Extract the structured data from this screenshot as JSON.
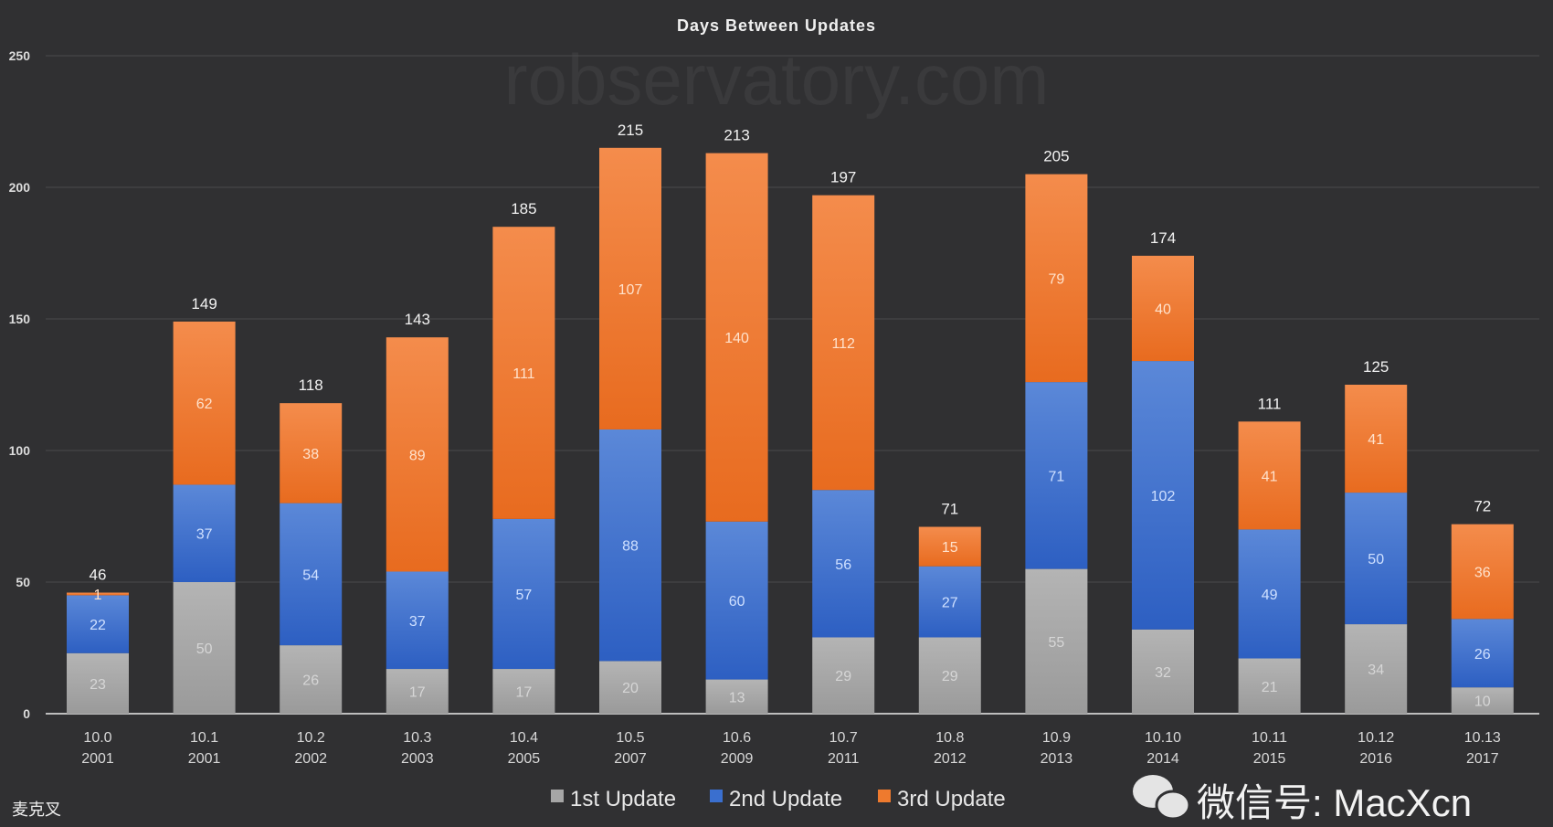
{
  "chart_data": {
    "type": "bar",
    "stacked": true,
    "title": "Days Between Updates",
    "xlabel": "",
    "ylabel": "",
    "ylim": [
      0,
      250
    ],
    "yticks": [
      0,
      50,
      100,
      150,
      200,
      250
    ],
    "grid": true,
    "legend_position": "bottom",
    "categories": [
      {
        "version": "10.0",
        "year": "2001"
      },
      {
        "version": "10.1",
        "year": "2001"
      },
      {
        "version": "10.2",
        "year": "2002"
      },
      {
        "version": "10.3",
        "year": "2003"
      },
      {
        "version": "10.4",
        "year": "2005"
      },
      {
        "version": "10.5",
        "year": "2007"
      },
      {
        "version": "10.6",
        "year": "2009"
      },
      {
        "version": "10.7",
        "year": "2011"
      },
      {
        "version": "10.8",
        "year": "2012"
      },
      {
        "version": "10.9",
        "year": "2013"
      },
      {
        "version": "10.10",
        "year": "2014"
      },
      {
        "version": "10.11",
        "year": "2015"
      },
      {
        "version": "10.12",
        "year": "2016"
      },
      {
        "version": "10.13",
        "year": "2017"
      }
    ],
    "series": [
      {
        "name": "1st Update",
        "color": "#a6a6a6",
        "values": [
          23,
          50,
          26,
          17,
          17,
          20,
          13,
          29,
          29,
          55,
          32,
          21,
          34,
          10
        ]
      },
      {
        "name": "2nd Update",
        "color": "#3a6fcf",
        "values": [
          22,
          37,
          54,
          37,
          57,
          88,
          60,
          56,
          27,
          71,
          102,
          49,
          50,
          26
        ]
      },
      {
        "name": "3rd Update",
        "color": "#ee7a2e",
        "values": [
          1,
          62,
          38,
          89,
          111,
          107,
          140,
          112,
          15,
          79,
          40,
          41,
          41,
          36
        ]
      }
    ],
    "totals": [
      46,
      149,
      118,
      143,
      185,
      215,
      213,
      197,
      71,
      205,
      174,
      111,
      125,
      72
    ]
  },
  "watermarks": {
    "background": "robservatory.com",
    "wechat": "微信号: MacXcn",
    "author": "麦克叉"
  }
}
